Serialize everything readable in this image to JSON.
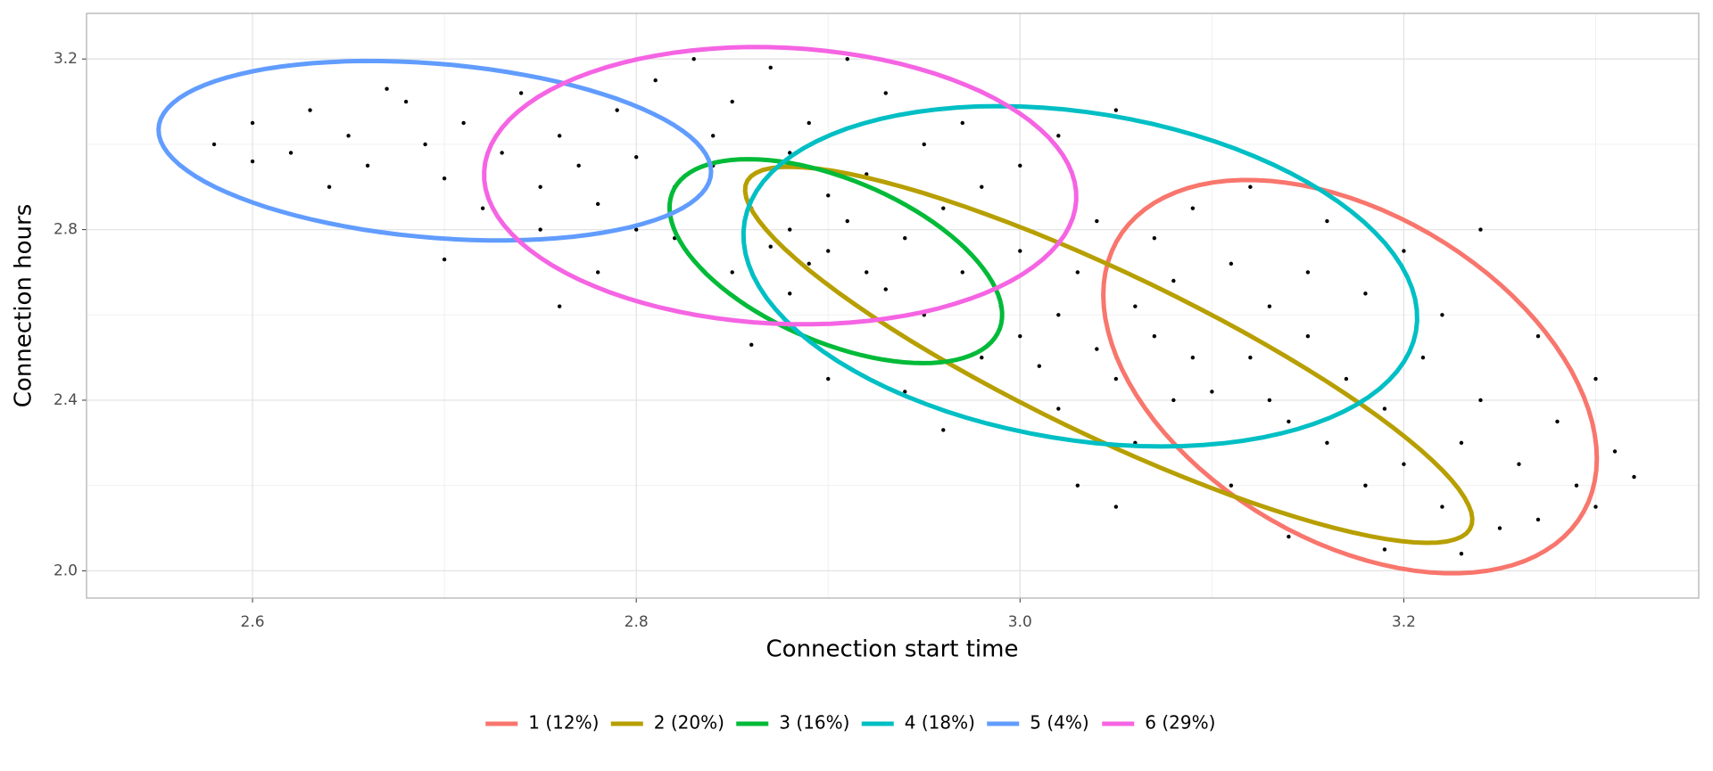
{
  "chart_data": {
    "type": "scatter",
    "x_label": "Connection start time",
    "y_label": "Connection hours",
    "xlim": [
      2.5135,
      3.3537
    ],
    "ylim": [
      1.936,
      3.307
    ],
    "xticks": [
      {
        "value": 2.6,
        "label": "2.6"
      },
      {
        "value": 2.8,
        "label": "2.8"
      },
      {
        "value": 3.0,
        "label": "3.0"
      },
      {
        "value": 3.2,
        "label": "3.2"
      }
    ],
    "yticks": [
      {
        "value": 2.0,
        "label": "2.0"
      },
      {
        "value": 2.4,
        "label": "2.4"
      },
      {
        "value": 2.8,
        "label": "2.8"
      },
      {
        "value": 3.2,
        "label": "3.2"
      }
    ],
    "xminor": [
      2.7,
      2.9,
      3.1,
      3.3
    ],
    "yminor": [
      2.2,
      2.6,
      3.0
    ],
    "grid": true,
    "legend": "bottom",
    "point_color": "#000000",
    "points": {
      "x": [
        2.58,
        2.6,
        2.62,
        2.63,
        2.65,
        2.66,
        2.68,
        2.69,
        2.7,
        2.71,
        2.72,
        2.73,
        2.74,
        2.75,
        2.76,
        2.77,
        2.78,
        2.79,
        2.7,
        2.64,
        2.6,
        2.67,
        2.75,
        2.8,
        2.81,
        2.83,
        2.85,
        2.87,
        2.89,
        2.91,
        2.93,
        2.95,
        2.82,
        2.84,
        2.86,
        2.88,
        2.9,
        2.92,
        2.94,
        2.96,
        2.98,
        2.85,
        2.87,
        2.89,
        2.91,
        2.93,
        2.95,
        2.97,
        2.99,
        2.83,
        2.86,
        2.88,
        2.9,
        2.92,
        2.88,
        2.84,
        2.8,
        2.78,
        2.76,
        2.82,
        2.97,
        3.0,
        3.02,
        3.05,
        2.9,
        2.94,
        2.96,
        2.98,
        3.0,
        3.01,
        3.02,
        3.03,
        3.04,
        3.05,
        3.06,
        3.07,
        3.08,
        3.09,
        3.1,
        3.0,
        3.02,
        3.04,
        3.06,
        3.08,
        3.1,
        3.03,
        3.05,
        3.07,
        3.09,
        3.11,
        3.12,
        3.12,
        3.13,
        3.14,
        3.15,
        3.16,
        3.17,
        3.18,
        3.19,
        3.2,
        3.21,
        3.22,
        3.23,
        3.24,
        3.25,
        3.26,
        3.27,
        3.28,
        3.29,
        3.3,
        3.31,
        3.32,
        3.15,
        3.18,
        3.2,
        3.22,
        3.24,
        3.14,
        3.19,
        3.23,
        3.27,
        3.3,
        3.16,
        3.11,
        3.13
      ],
      "y": [
        3.0,
        3.05,
        2.98,
        3.08,
        3.02,
        2.95,
        3.1,
        3.0,
        2.92,
        3.05,
        2.85,
        2.98,
        3.12,
        2.9,
        3.02,
        2.95,
        2.86,
        3.08,
        2.73,
        2.9,
        2.96,
        3.13,
        2.8,
        2.97,
        3.15,
        3.2,
        3.1,
        3.18,
        3.05,
        3.2,
        3.12,
        3.0,
        2.9,
        2.95,
        2.85,
        2.8,
        2.75,
        2.7,
        2.78,
        2.85,
        2.9,
        2.7,
        2.76,
        2.72,
        2.82,
        2.66,
        2.6,
        2.7,
        2.62,
        2.6,
        2.53,
        2.65,
        2.88,
        2.93,
        2.98,
        3.02,
        2.8,
        2.7,
        2.62,
        2.78,
        3.05,
        2.95,
        3.02,
        3.08,
        2.45,
        2.42,
        2.33,
        2.5,
        2.55,
        2.48,
        2.6,
        2.7,
        2.52,
        2.45,
        2.62,
        2.55,
        2.4,
        2.5,
        2.6,
        2.75,
        2.38,
        2.82,
        2.3,
        2.68,
        2.42,
        2.2,
        2.15,
        2.78,
        2.85,
        2.72,
        2.9,
        2.5,
        2.4,
        2.35,
        2.55,
        2.3,
        2.45,
        2.2,
        2.38,
        2.25,
        2.5,
        2.15,
        2.3,
        2.4,
        2.1,
        2.25,
        2.55,
        2.35,
        2.2,
        2.45,
        2.28,
        2.22,
        2.7,
        2.65,
        2.75,
        2.6,
        2.8,
        2.08,
        2.05,
        2.04,
        2.12,
        2.15,
        2.82,
        2.2,
        2.62
      ]
    },
    "series": [
      {
        "name": "1 (12%)",
        "color": "#f8766d",
        "center": [
          3.172,
          2.4552
        ],
        "u": [
          0.1286,
          -0.1918
        ],
        "v": [
          0,
          0.4194
        ]
      },
      {
        "name": "2 (20%)",
        "color": "#b79f00",
        "center": [
          3.0462,
          2.5064
        ],
        "u": [
          0.1895,
          -0.3836
        ],
        "v": [
          -0.0028,
          0.2174
        ]
      },
      {
        "name": "3 (16%)",
        "color": "#00ba38",
        "center": [
          2.904,
          2.726
        ],
        "u": [
          0.0854,
          -0.1586
        ],
        "v": [
          0.0148,
          0.179
        ]
      },
      {
        "name": "4 (18%)",
        "color": "#00bfc4",
        "center": [
          3.0314,
          2.6905
        ],
        "u": [
          0.1736,
          -0.1535
        ],
        "v": [
          0.0262,
          0.3683
        ]
      },
      {
        "name": "5 (4%)",
        "color": "#619cff",
        "center": [
          2.695,
          2.985
        ],
        "u": [
          0.144,
          -0.049
        ],
        "v": [
          0,
          0.2046
        ]
      },
      {
        "name": "6 (29%)",
        "color": "#f564e3",
        "center": [
          2.875,
          2.903
        ],
        "u": [
          0.1542,
          -0.0128
        ],
        "v": [
          -0.0063,
          0.3248
        ]
      }
    ]
  }
}
